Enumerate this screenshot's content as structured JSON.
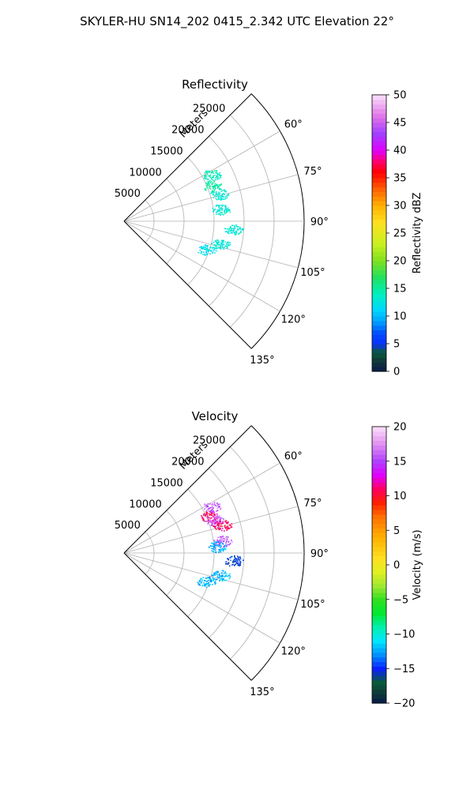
{
  "figure": {
    "suptitle": "SKYLER-HU  SN14_202  0415_2.342 UTC Elevation 22°"
  },
  "chart_data": [
    {
      "type": "scatter",
      "title": "Reflectivity",
      "projection": "polar-sector",
      "azimuth_range_deg": [
        45,
        135
      ],
      "range_label": "Meters",
      "range_max": 30000,
      "range_rings": [
        5000,
        10000,
        15000,
        20000,
        25000,
        30000
      ],
      "range_tick_labels": [
        "5000",
        "10000",
        "15000",
        "20000",
        "25000"
      ],
      "azimuth_ticks": [
        "60°",
        "75°",
        "90°",
        "105°",
        "120°",
        "135°"
      ],
      "grid": true,
      "colorbar": {
        "label": "Reflectivity dBZ",
        "min": 0,
        "max": 50,
        "ticks": [
          "0",
          "5",
          "10",
          "15",
          "20",
          "25",
          "30",
          "35",
          "40",
          "45",
          "50"
        ]
      },
      "clusters": [
        {
          "azimuth_deg": 62,
          "range_m": 16500,
          "value": 14
        },
        {
          "azimuth_deg": 68,
          "range_m": 15800,
          "value": 15
        },
        {
          "azimuth_deg": 74,
          "range_m": 16500,
          "value": 13
        },
        {
          "azimuth_deg": 83,
          "range_m": 16300,
          "value": 13
        },
        {
          "azimuth_deg": 94,
          "range_m": 18300,
          "value": 13
        },
        {
          "azimuth_deg": 103,
          "range_m": 16500,
          "value": 13
        },
        {
          "azimuth_deg": 109,
          "range_m": 14500,
          "value": 12
        }
      ]
    },
    {
      "type": "scatter",
      "title": "Velocity",
      "projection": "polar-sector",
      "azimuth_range_deg": [
        45,
        135
      ],
      "range_label": "Meters",
      "range_max": 30000,
      "range_rings": [
        5000,
        10000,
        15000,
        20000,
        25000,
        30000
      ],
      "range_tick_labels": [
        "5000",
        "10000",
        "15000",
        "20000",
        "25000"
      ],
      "azimuth_ticks": [
        "60°",
        "75°",
        "90°",
        "105°",
        "120°",
        "135°"
      ],
      "grid": true,
      "colorbar": {
        "label": "Velocity (m/s)",
        "min": -20,
        "max": 20,
        "ticks": [
          "−20",
          "−15",
          "−10",
          "−5",
          "0",
          "5",
          "10",
          "15",
          "20"
        ]
      },
      "clusters": [
        {
          "azimuth_deg": 62,
          "range_m": 16500,
          "value": 16
        },
        {
          "azimuth_deg": 67,
          "range_m": 15500,
          "value": 11
        },
        {
          "azimuth_deg": 70,
          "range_m": 16000,
          "value": 16
        },
        {
          "azimuth_deg": 74,
          "range_m": 17000,
          "value": 11
        },
        {
          "azimuth_deg": 83,
          "range_m": 16500,
          "value": 16
        },
        {
          "azimuth_deg": 86,
          "range_m": 15500,
          "value": -12
        },
        {
          "azimuth_deg": 94,
          "range_m": 18300,
          "value": -15
        },
        {
          "azimuth_deg": 103,
          "range_m": 16500,
          "value": -12
        },
        {
          "azimuth_deg": 109,
          "range_m": 14500,
          "value": -12
        }
      ]
    }
  ]
}
